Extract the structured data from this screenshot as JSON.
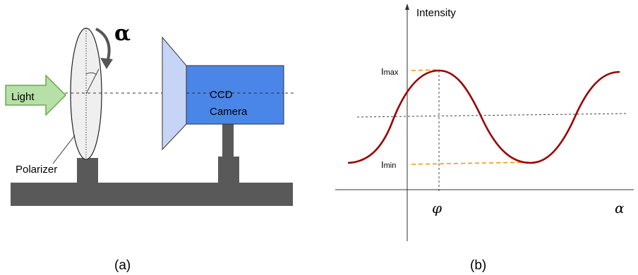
{
  "panel_a": {
    "caption": "(a)",
    "light_label": "Light",
    "polarizer_label": "Polarizer",
    "rotation_symbol": "α",
    "camera_label_line1": "CCD",
    "camera_label_line2": "Camera",
    "colors": {
      "light_arrow": "#b7dfa8",
      "lens": "#c6d5f5",
      "camera_body": "#4a86e8",
      "base": "#595959",
      "stand": "#595959",
      "polarizer": "#efefef"
    }
  },
  "panel_b": {
    "caption": "(b)",
    "y_axis_label": "Intensity",
    "x_axis_label": "α",
    "phase_label": "φ",
    "imax_label": "I",
    "imax_sub": "max",
    "imin_label": "I",
    "imin_sub": "min",
    "colors": {
      "curve": "#990000",
      "guide": "#ff9900"
    }
  }
}
